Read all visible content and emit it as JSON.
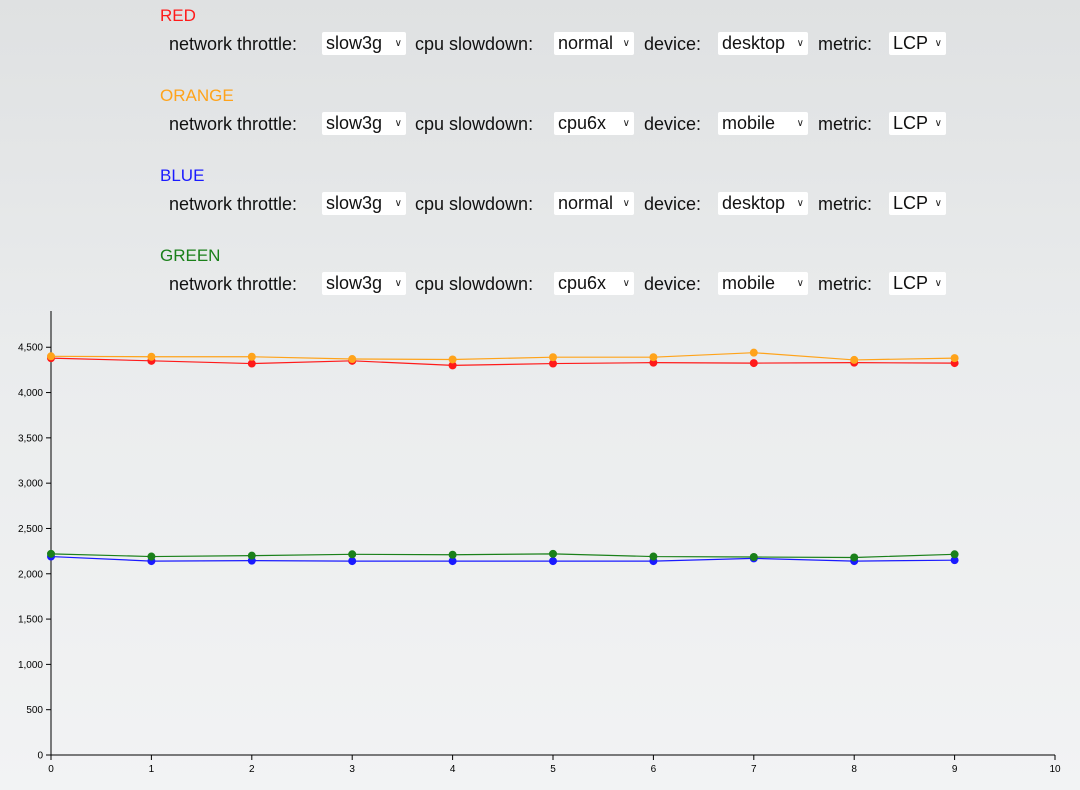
{
  "control_labels": {
    "network": "network throttle:",
    "cpu": "cpu slowdown:",
    "device": "device:",
    "metric": "metric:"
  },
  "groups": [
    {
      "label": "RED",
      "color": "#ff1a1a",
      "network": "slow3g",
      "cpu": "normal",
      "device": "desktop",
      "metric": "LCP"
    },
    {
      "label": "ORANGE",
      "color": "#ffa31a",
      "network": "slow3g",
      "cpu": "cpu6x",
      "device": "mobile",
      "metric": "LCP"
    },
    {
      "label": "BLUE",
      "color": "#1a1aff",
      "network": "slow3g",
      "cpu": "normal",
      "device": "desktop",
      "metric": "LCP"
    },
    {
      "label": "GREEN",
      "color": "#1a801a",
      "network": "slow3g",
      "cpu": "cpu6x",
      "device": "mobile",
      "metric": "LCP"
    }
  ],
  "chart_data": {
    "type": "line",
    "x": [
      0,
      1,
      2,
      3,
      4,
      5,
      6,
      7,
      8,
      9
    ],
    "xlim": [
      0,
      10
    ],
    "ylim": [
      0,
      4900
    ],
    "x_ticks": [
      "0",
      "1",
      "2",
      "3",
      "4",
      "5",
      "6",
      "7",
      "8",
      "9",
      "10"
    ],
    "y_ticks": [
      "0",
      "500",
      "1,000",
      "1,500",
      "2,000",
      "2,500",
      "3,000",
      "3,500",
      "4,000",
      "4,500"
    ],
    "y_tick_values": [
      0,
      500,
      1000,
      1500,
      2000,
      2500,
      3000,
      3500,
      4000,
      4500
    ],
    "grid": false,
    "series": [
      {
        "name": "RED",
        "color": "#ff1a1a",
        "values": [
          4380,
          4350,
          4320,
          4350,
          4300,
          4320,
          4330,
          4325,
          4330,
          4325
        ]
      },
      {
        "name": "ORANGE",
        "color": "#ffa31a",
        "values": [
          4400,
          4395,
          4395,
          4370,
          4365,
          4390,
          4390,
          4440,
          4360,
          4380
        ]
      },
      {
        "name": "BLUE",
        "color": "#1a1aff",
        "values": [
          2190,
          2140,
          2145,
          2140,
          2140,
          2140,
          2140,
          2170,
          2140,
          2150
        ]
      },
      {
        "name": "GREEN",
        "color": "#1a801a",
        "values": [
          2220,
          2190,
          2200,
          2215,
          2210,
          2220,
          2190,
          2185,
          2180,
          2215
        ]
      }
    ]
  }
}
